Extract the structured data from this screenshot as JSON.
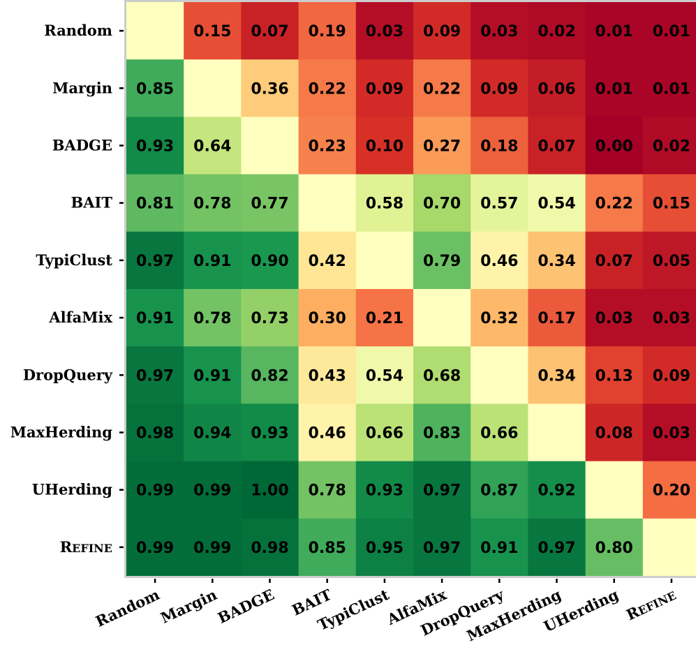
{
  "chart_data": {
    "type": "heatmap",
    "title": "",
    "xlabel": "",
    "ylabel": "",
    "rows": [
      "Random",
      "Margin",
      "BADGE",
      "BAIT",
      "TypiClust",
      "AlfaMix",
      "DropQuery",
      "MaxHerding",
      "UHerding",
      "REFINE"
    ],
    "columns": [
      "Random",
      "Margin",
      "BADGE",
      "BAIT",
      "TypiClust",
      "AlfaMix",
      "DropQuery",
      "MaxHerding",
      "UHerding",
      "REFINE"
    ],
    "values": [
      [
        null,
        0.15,
        0.07,
        0.19,
        0.03,
        0.09,
        0.03,
        0.02,
        0.01,
        0.01
      ],
      [
        0.85,
        null,
        0.36,
        0.22,
        0.09,
        0.22,
        0.09,
        0.06,
        0.01,
        0.01
      ],
      [
        0.93,
        0.64,
        null,
        0.23,
        0.1,
        0.27,
        0.18,
        0.07,
        0.0,
        0.02
      ],
      [
        0.81,
        0.78,
        0.77,
        null,
        0.58,
        0.7,
        0.57,
        0.54,
        0.22,
        0.15
      ],
      [
        0.97,
        0.91,
        0.9,
        0.42,
        null,
        0.79,
        0.46,
        0.34,
        0.07,
        0.05
      ],
      [
        0.91,
        0.78,
        0.73,
        0.3,
        0.21,
        null,
        0.32,
        0.17,
        0.03,
        0.03
      ],
      [
        0.97,
        0.91,
        0.82,
        0.43,
        0.54,
        0.68,
        null,
        0.34,
        0.13,
        0.09
      ],
      [
        0.98,
        0.94,
        0.93,
        0.46,
        0.66,
        0.83,
        0.66,
        null,
        0.08,
        0.03
      ],
      [
        0.99,
        0.99,
        1.0,
        0.78,
        0.93,
        0.97,
        0.87,
        0.92,
        null,
        0.2
      ],
      [
        0.99,
        0.99,
        0.98,
        0.85,
        0.95,
        0.97,
        0.91,
        0.97,
        0.8,
        null
      ]
    ],
    "diagonal_value": 0.5,
    "colormap": "RdYlGn",
    "vmin": 0,
    "vmax": 1,
    "value_format": "2 decimals",
    "grid": false,
    "legend": "none"
  }
}
